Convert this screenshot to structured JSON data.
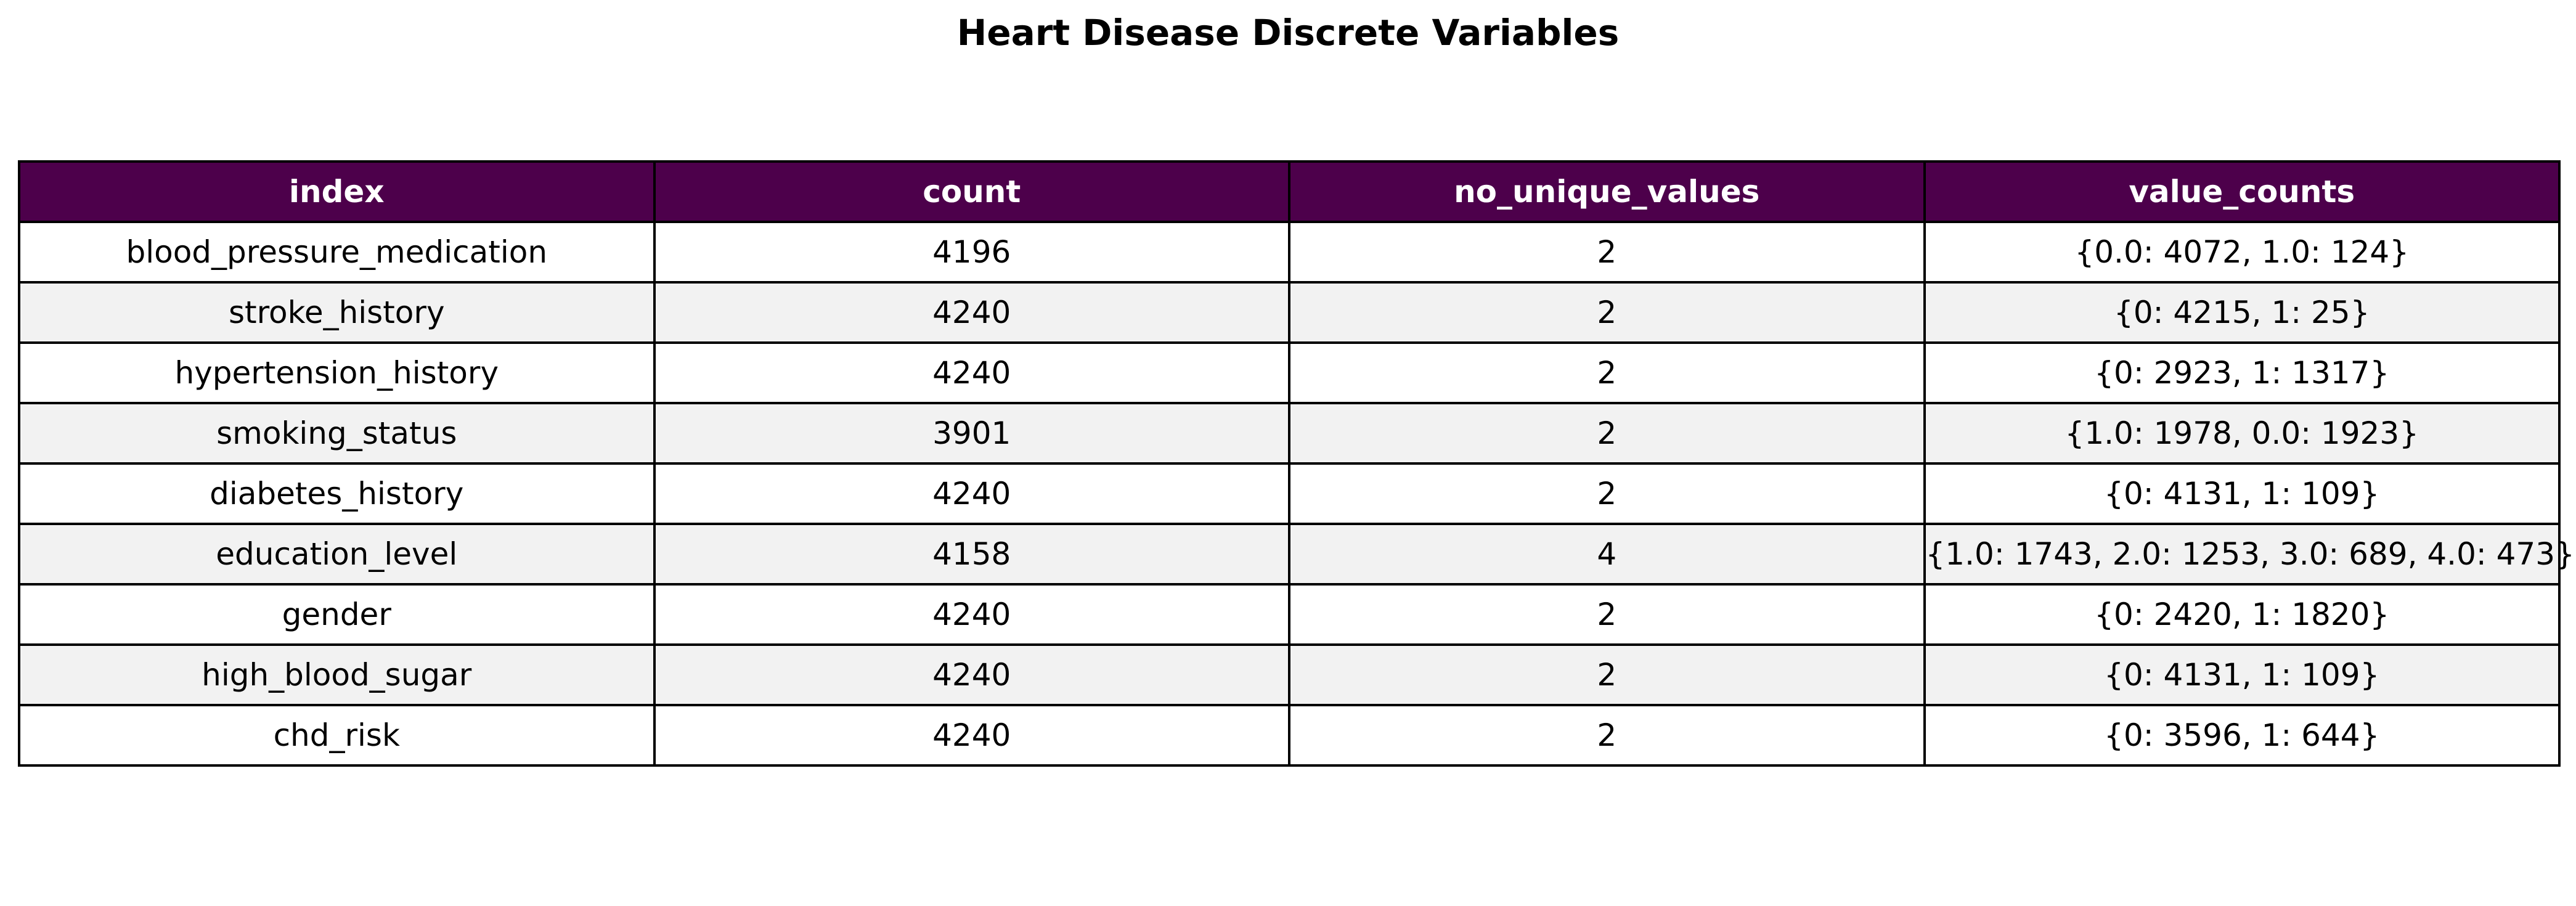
{
  "chart_data": {
    "type": "table",
    "title": "Heart Disease Discrete Variables",
    "header_color": "#4d004b",
    "row_colors": [
      "#ffffff",
      "#f2f2f2"
    ],
    "columns": [
      "index",
      "count",
      "no_unique_values",
      "value_counts"
    ],
    "rows": [
      [
        "blood_pressure_medication",
        "4196",
        "2",
        "{0.0: 4072, 1.0: 124}"
      ],
      [
        "stroke_history",
        "4240",
        "2",
        "{0: 4215, 1: 25}"
      ],
      [
        "hypertension_history",
        "4240",
        "2",
        "{0: 2923, 1: 1317}"
      ],
      [
        "smoking_status",
        "3901",
        "2",
        "{1.0: 1978, 0.0: 1923}"
      ],
      [
        "diabetes_history",
        "4240",
        "2",
        "{0: 4131, 1: 109}"
      ],
      [
        "education_level",
        "4158",
        "4",
        "{1.0: 1743, 2.0: 1253, 3.0: 689, 4.0: 473}"
      ],
      [
        "gender",
        "4240",
        "2",
        "{0: 2420, 1: 1820}"
      ],
      [
        "high_blood_sugar",
        "4240",
        "2",
        "{0: 4131, 1: 109}"
      ],
      [
        "chd_risk",
        "4240",
        "2",
        "{0: 3596, 1: 644}"
      ]
    ]
  }
}
